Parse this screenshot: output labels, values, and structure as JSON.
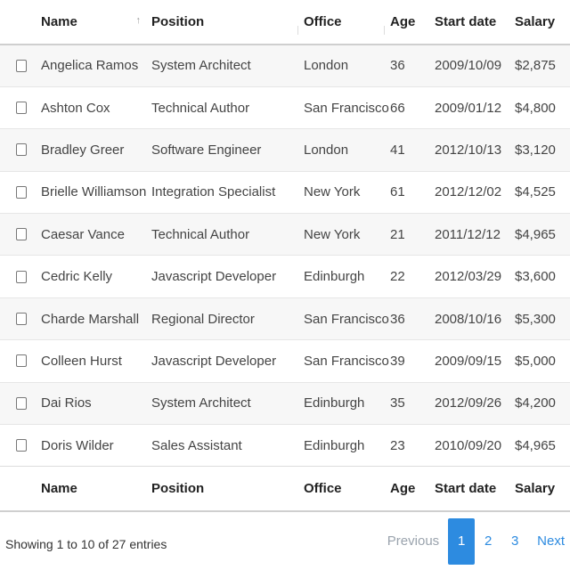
{
  "columns": {
    "name": "Name",
    "position": "Position",
    "office": "Office",
    "age": "Age",
    "start_date": "Start date",
    "salary": "Salary"
  },
  "sort_icon": "sort-icon",
  "rows": [
    {
      "name": "Angelica Ramos",
      "position": "System Architect",
      "office": "London",
      "age": "36",
      "start_date": "2009/10/09",
      "salary": "$2,875"
    },
    {
      "name": "Ashton Cox",
      "position": "Technical Author",
      "office": "San Francisco",
      "age": "66",
      "start_date": "2009/01/12",
      "salary": "$4,800"
    },
    {
      "name": "Bradley Greer",
      "position": "Software Engineer",
      "office": "London",
      "age": "41",
      "start_date": "2012/10/13",
      "salary": "$3,120"
    },
    {
      "name": "Brielle Williamson",
      "position": "Integration Specialist",
      "office": "New York",
      "age": "61",
      "start_date": "2012/12/02",
      "salary": "$4,525"
    },
    {
      "name": "Caesar Vance",
      "position": "Technical Author",
      "office": "New York",
      "age": "21",
      "start_date": "2011/12/12",
      "salary": "$4,965"
    },
    {
      "name": "Cedric Kelly",
      "position": "Javascript Developer",
      "office": "Edinburgh",
      "age": "22",
      "start_date": "2012/03/29",
      "salary": "$3,600"
    },
    {
      "name": "Charde Marshall",
      "position": "Regional Director",
      "office": "San Francisco",
      "age": "36",
      "start_date": "2008/10/16",
      "salary": "$5,300"
    },
    {
      "name": "Colleen Hurst",
      "position": "Javascript Developer",
      "office": "San Francisco",
      "age": "39",
      "start_date": "2009/09/15",
      "salary": "$5,000"
    },
    {
      "name": "Dai Rios",
      "position": "System Architect",
      "office": "Edinburgh",
      "age": "35",
      "start_date": "2012/09/26",
      "salary": "$4,200"
    },
    {
      "name": "Doris Wilder",
      "position": "Sales Assistant",
      "office": "Edinburgh",
      "age": "23",
      "start_date": "2010/09/20",
      "salary": "$4,965"
    }
  ],
  "info": "Showing 1 to 10 of 27 entries",
  "pagination": {
    "previous": "Previous",
    "pages": [
      "1",
      "2",
      "3"
    ],
    "active_page": "1",
    "next": "Next"
  },
  "colors": {
    "accent": "#2d8be0",
    "row_stripe": "#f7f7f7",
    "disabled": "#9aa3ad"
  }
}
